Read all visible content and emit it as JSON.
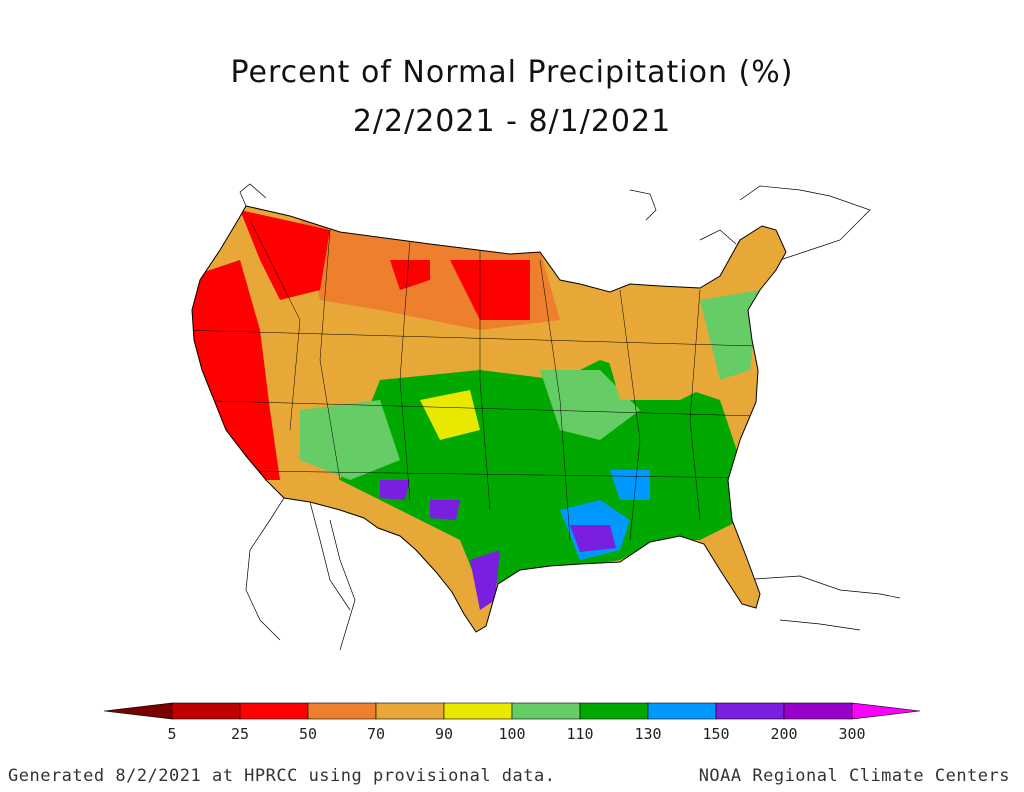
{
  "title": "Percent of Normal Precipitation (%)",
  "subtitle": "2/2/2021 - 8/1/2021",
  "legend": {
    "bins": [
      {
        "color": "#7a0000"
      },
      {
        "color": "#c00000"
      },
      {
        "color": "#ff0000"
      },
      {
        "color": "#ee7f2d"
      },
      {
        "color": "#e8a838"
      },
      {
        "color": "#e8e800"
      },
      {
        "color": "#66cc66"
      },
      {
        "color": "#00a800"
      },
      {
        "color": "#0099ff"
      },
      {
        "color": "#7a1ee0"
      },
      {
        "color": "#9900cc"
      },
      {
        "color": "#ff00ff"
      }
    ],
    "labels": [
      "5",
      "25",
      "50",
      "70",
      "90",
      "100",
      "110",
      "130",
      "150",
      "200",
      "300"
    ]
  },
  "footer_left": "Generated 8/2/2021 at HPRCC using provisional data.",
  "footer_right": "NOAA Regional Climate Centers"
}
